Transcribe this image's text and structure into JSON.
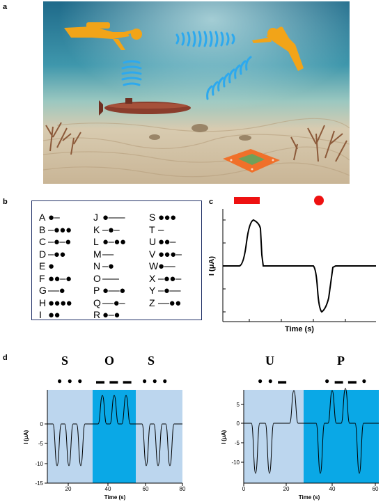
{
  "panels": {
    "a": "a",
    "b": "b",
    "c": "c",
    "d": "d"
  },
  "morse_table": {
    "col1": [
      {
        "letter": "A",
        "code": "●‒"
      },
      {
        "letter": "B",
        "code": "‒●●●"
      },
      {
        "letter": "C",
        "code": "‒●‒●"
      },
      {
        "letter": "D",
        "code": "‒●●"
      },
      {
        "letter": "E",
        "code": "●"
      },
      {
        "letter": "F",
        "code": "●●‒●"
      },
      {
        "letter": "G",
        "code": "‒‒●"
      },
      {
        "letter": "H",
        "code": "●●●●"
      },
      {
        "letter": "I",
        "code": "●●"
      }
    ],
    "col2": [
      {
        "letter": "J",
        "code": "●‒‒‒"
      },
      {
        "letter": "K",
        "code": "‒●‒"
      },
      {
        "letter": "L",
        "code": "●‒●●"
      },
      {
        "letter": "M",
        "code": "‒‒"
      },
      {
        "letter": "N",
        "code": "‒●"
      },
      {
        "letter": "O",
        "code": "‒‒‒"
      },
      {
        "letter": "P",
        "code": "●‒‒●"
      },
      {
        "letter": "Q",
        "code": "‒‒●‒"
      },
      {
        "letter": "R",
        "code": "●‒●"
      }
    ],
    "col3": [
      {
        "letter": "S",
        "code": "●●●"
      },
      {
        "letter": "T",
        "code": "‒"
      },
      {
        "letter": "U",
        "code": "●●‒"
      },
      {
        "letter": "V",
        "code": "●●●‒"
      },
      {
        "letter": "W",
        "code": "●‒‒"
      },
      {
        "letter": "X",
        "code": "‒●●‒"
      },
      {
        "letter": "Y",
        "code": "‒●‒‒"
      },
      {
        "letter": "Z",
        "code": "‒‒●●"
      }
    ]
  },
  "panel_c": {
    "ylabel": "I (μA)",
    "xlabel": "Time (s)",
    "dash_color": "#ee1111",
    "dot_color": "#ee1111"
  },
  "panel_d": {
    "left": {
      "letters": [
        "S",
        "O",
        "S"
      ],
      "codes": [
        "● ● ●",
        "▬ ▬ ▬",
        "● ● ●"
      ],
      "xlabel": "Time (s)",
      "ylabel": "I (μA)",
      "xticks": [
        "20",
        "40",
        "60",
        "80"
      ],
      "yticks": [
        "0",
        "-5",
        "-10",
        "-15"
      ]
    },
    "right": {
      "letters": [
        "U",
        "P"
      ],
      "codes": [
        "● ● ▬",
        "● ▬ ▬ ●"
      ],
      "xlabel": "Time (s)",
      "ylabel": "I (μA)",
      "xticks": [
        "0",
        "20",
        "40",
        "60"
      ],
      "yticks": [
        "5",
        "0",
        "-5",
        "-10"
      ]
    },
    "light_color": "#bcd6ee",
    "dark_color": "#0aa8e6"
  }
}
